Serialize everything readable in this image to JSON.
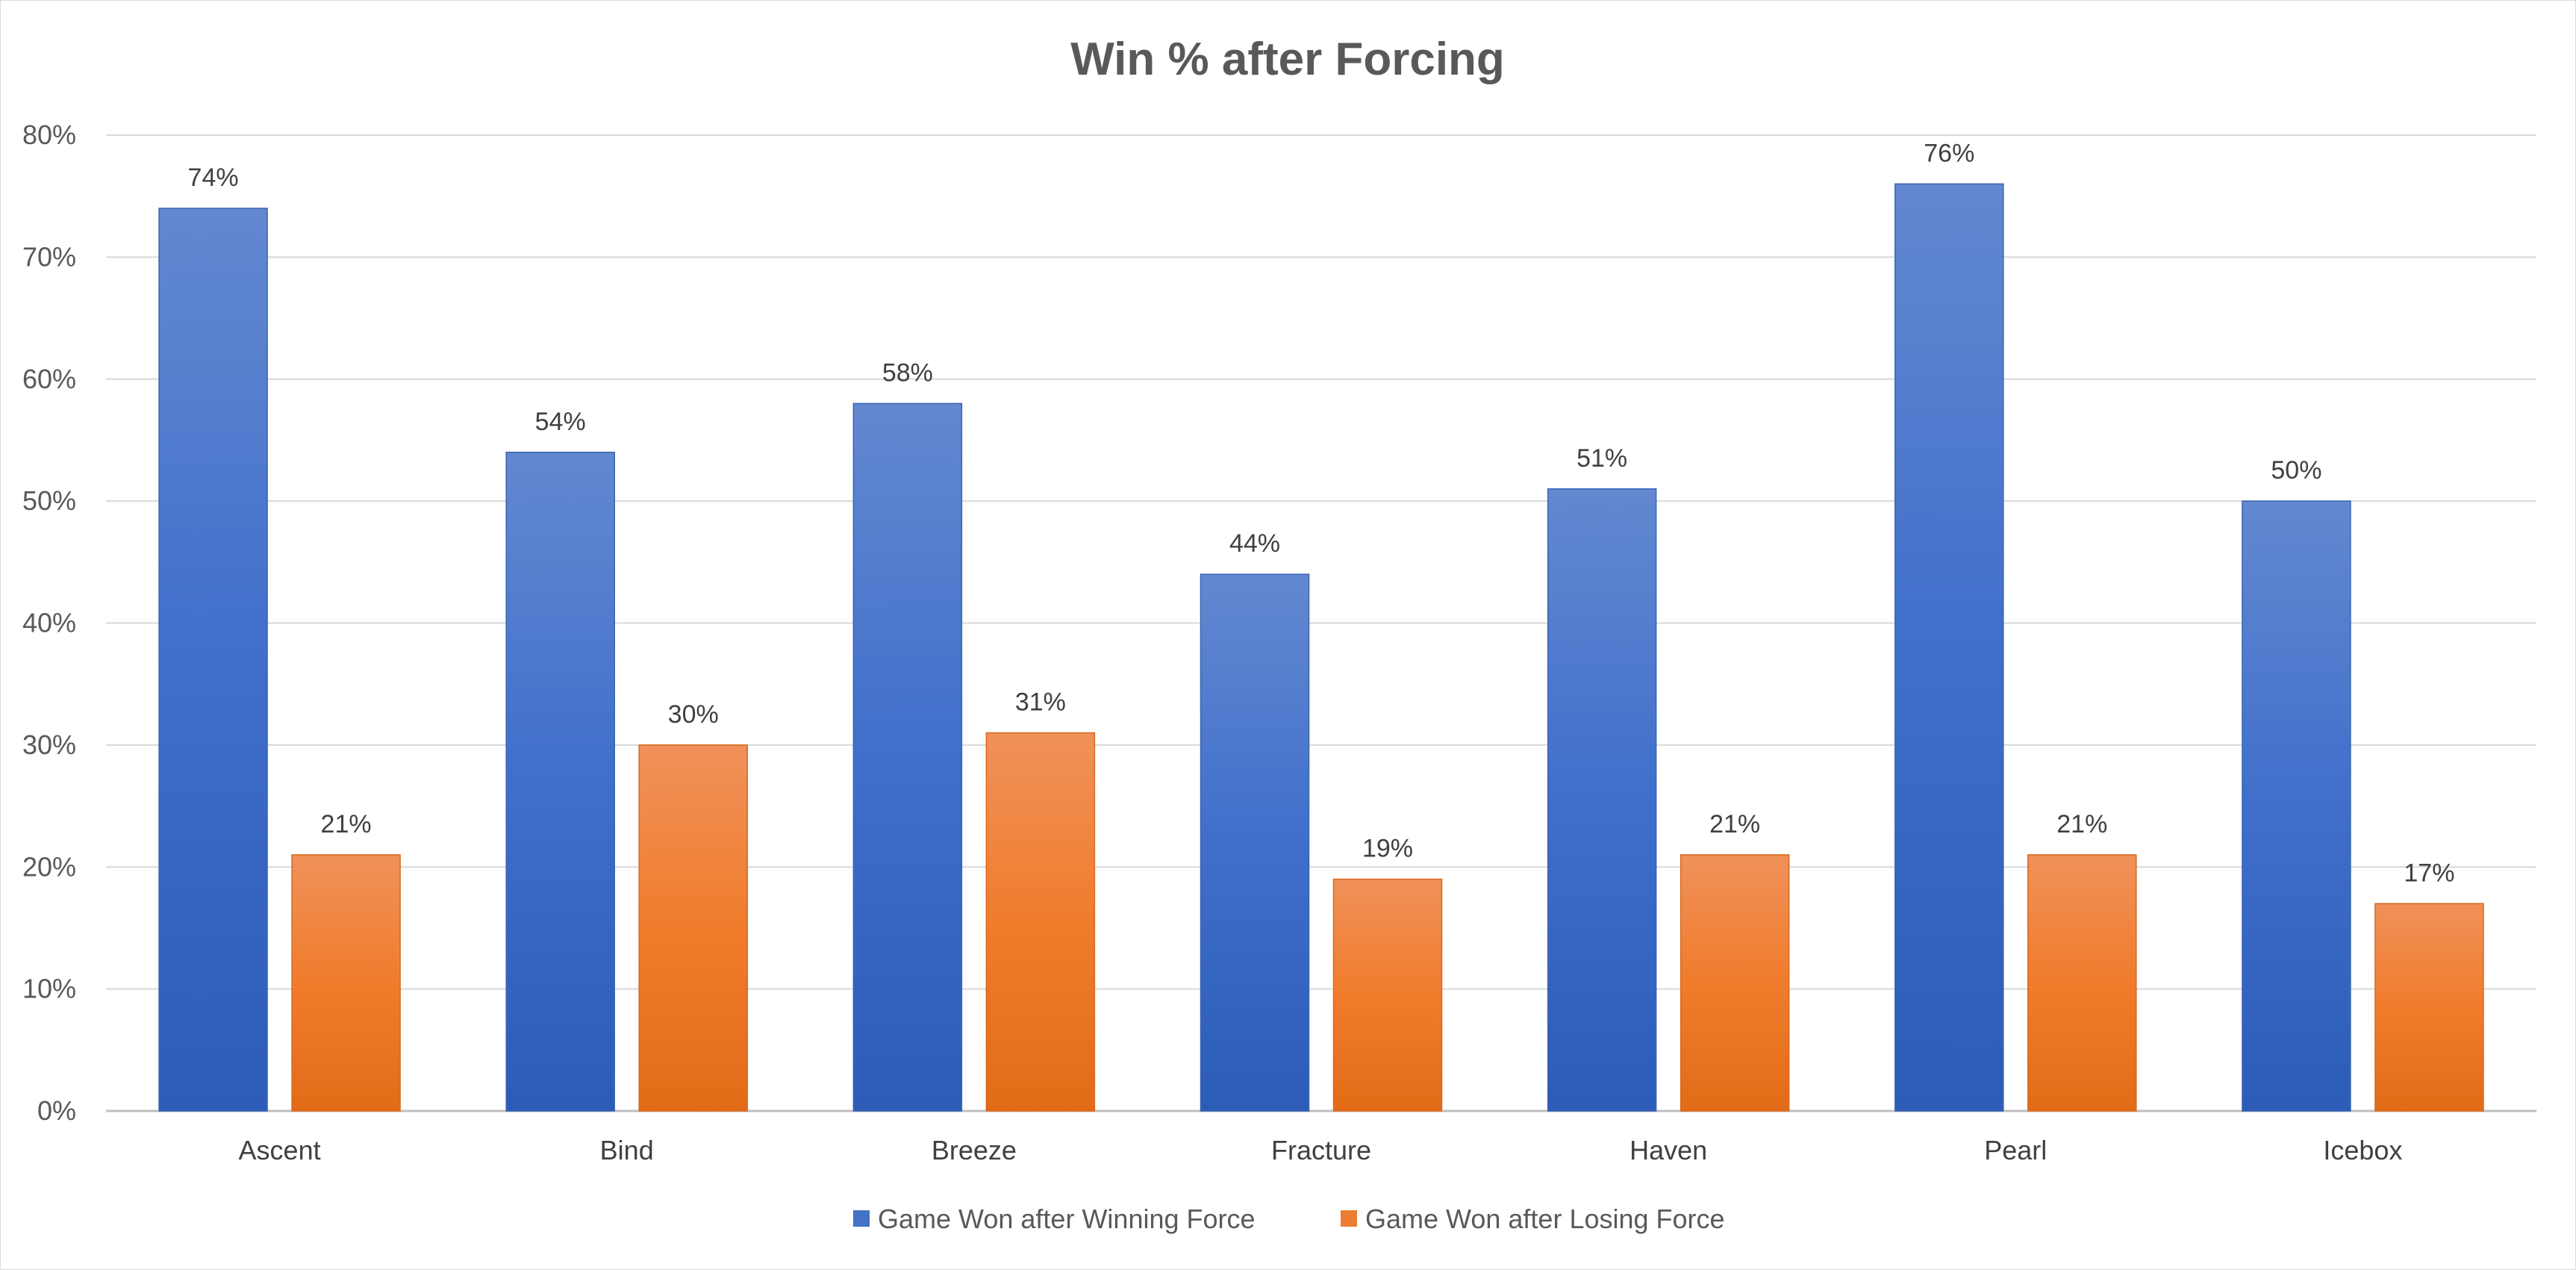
{
  "chart_data": {
    "type": "bar",
    "title": "Win % after Forcing",
    "xlabel": "",
    "ylabel": "",
    "ylim": [
      0,
      80
    ],
    "y_ticks": [
      0,
      10,
      20,
      30,
      40,
      50,
      60,
      70,
      80
    ],
    "y_tick_format": "percent",
    "grid": true,
    "legend_position": "bottom",
    "categories": [
      "Ascent",
      "Bind",
      "Breeze",
      "Fracture",
      "Haven",
      "Pearl",
      "Icebox"
    ],
    "series": [
      {
        "name": "Game Won after Winning Force",
        "color": "#4472C4",
        "values": [
          74,
          54,
          58,
          44,
          51,
          76,
          50
        ]
      },
      {
        "name": "Game Won after Losing Force",
        "color": "#ED7D31",
        "values": [
          21,
          30,
          31,
          19,
          21,
          21,
          17
        ]
      }
    ]
  }
}
